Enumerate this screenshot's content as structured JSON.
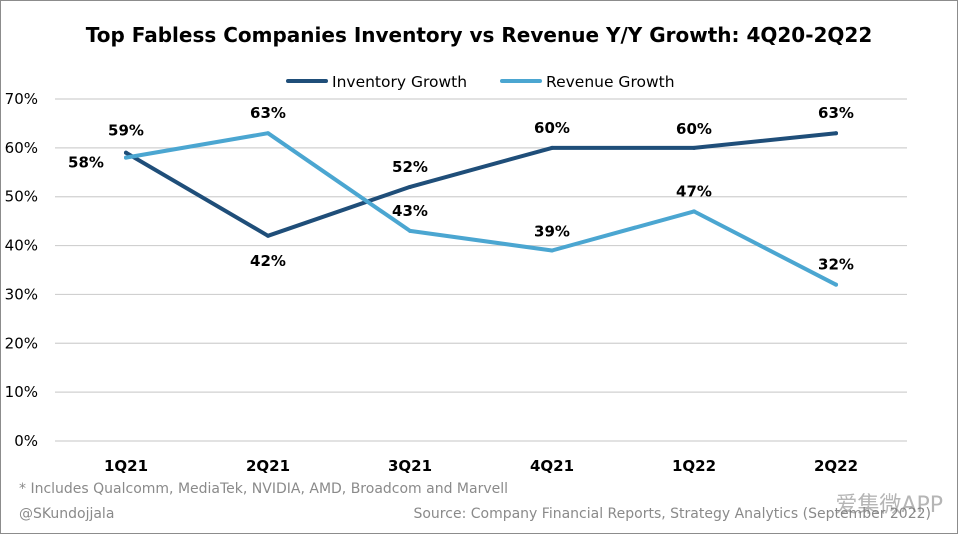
{
  "chart_data": {
    "type": "line",
    "title": "Top Fabless Companies Inventory vs Revenue Y/Y Growth: 4Q20-2Q22",
    "categories": [
      "1Q21",
      "2Q21",
      "3Q21",
      "4Q21",
      "1Q22",
      "2Q22"
    ],
    "series": [
      {
        "name": "Inventory Growth",
        "color": "#1f4e79",
        "values": [
          59,
          42,
          52,
          60,
          60,
          63
        ],
        "labels": [
          "59%",
          "42%",
          "52%",
          "60%",
          "60%",
          "63%"
        ]
      },
      {
        "name": "Revenue Growth",
        "color": "#4ba6d1",
        "values": [
          58,
          63,
          43,
          39,
          47,
          32
        ],
        "labels": [
          "58%",
          "63%",
          "43%",
          "39%",
          "47%",
          "32%"
        ]
      }
    ],
    "ylim": [
      0,
      70
    ],
    "yticks": [
      "0%",
      "10%",
      "20%",
      "30%",
      "40%",
      "50%",
      "60%",
      "70%"
    ],
    "grid": true,
    "legend": "top-center",
    "xlabel": "",
    "ylabel": ""
  },
  "footer": {
    "note": "* Includes Qualcomm, MediaTek, NVIDIA, AMD, Broadcom and Marvell",
    "handle": "@SKundojjala",
    "source": "Source: Company Financial Reports, Strategy Analytics (September 2022)"
  },
  "watermark": "爱集微APP"
}
